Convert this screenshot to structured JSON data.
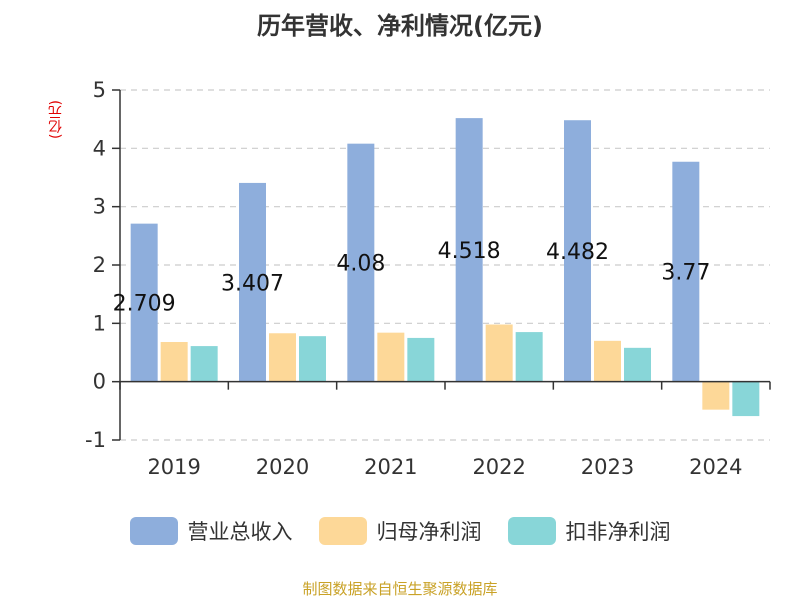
{
  "chart_data": {
    "type": "bar",
    "title": "历年营收、净利情况(亿元)",
    "ylabel": "(亿元)",
    "categories": [
      "2019",
      "2020",
      "2021",
      "2022",
      "2023",
      "2024"
    ],
    "series": [
      {
        "name": "营业总收入",
        "values": [
          2.709,
          3.407,
          4.08,
          4.518,
          4.482,
          3.77
        ],
        "labels": [
          "2.709",
          "3.407",
          "4.08",
          "4.518",
          "4.482",
          "3.77"
        ]
      },
      {
        "name": "归母净利润",
        "values": [
          0.68,
          0.83,
          0.84,
          0.98,
          0.7,
          -0.48
        ]
      },
      {
        "name": "扣非净利润",
        "values": [
          0.61,
          0.78,
          0.75,
          0.85,
          0.58,
          -0.59
        ]
      }
    ],
    "ylim": [
      -1,
      5
    ],
    "yticks": [
      "-1",
      "0",
      "1",
      "2",
      "3",
      "4",
      "5"
    ],
    "grid": true,
    "legend": "bottom"
  },
  "colors": [
    "#8eaedc",
    "#fdd898",
    "#88d6d8"
  ],
  "source": "制图数据来自恒生聚源数据库"
}
